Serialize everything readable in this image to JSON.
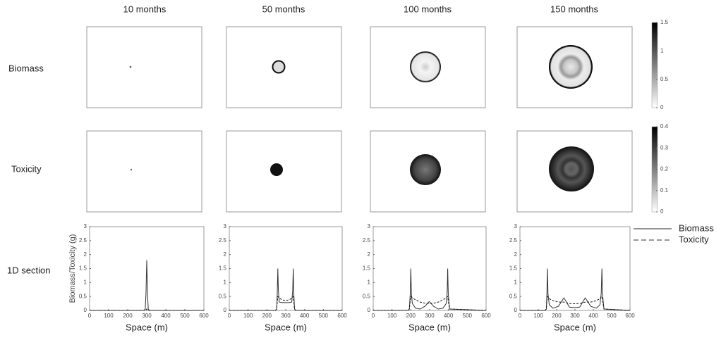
{
  "column_titles": [
    "10 months",
    "50 months",
    "100 months",
    "150 months"
  ],
  "row_labels": [
    "Biomass",
    "Toxicity",
    "1D section"
  ],
  "colorbars": [
    {
      "lim": [
        0,
        1.5
      ],
      "ticks": [
        0,
        0.5,
        1,
        1.5
      ]
    },
    {
      "lim": [
        0,
        0.4
      ],
      "ticks": [
        0,
        0.1,
        0.2,
        0.3,
        0.4
      ]
    }
  ],
  "chart_data": [
    {
      "type": "line",
      "xlabel": "Space (m)",
      "ylabel": "Biomass/Toxicity (g)",
      "xlim": [
        0,
        600
      ],
      "xticks": [
        0,
        100,
        200,
        300,
        400,
        500,
        600
      ],
      "ylim": [
        0,
        3
      ],
      "yticks": [
        0,
        0.5,
        1,
        1.5,
        2,
        2.5,
        3
      ],
      "x": [
        0,
        285,
        292,
        296,
        300,
        304,
        308,
        315,
        600
      ],
      "series": [
        {
          "color": "#333333",
          "dash": "solid",
          "values": [
            0,
            0,
            0.05,
            0.6,
            1.8,
            0.6,
            0.05,
            0,
            0
          ]
        },
        {
          "color": "#111111",
          "dash": "dashed",
          "values": [
            0,
            0,
            0,
            0.02,
            0.05,
            0.02,
            0,
            0,
            0
          ]
        }
      ]
    },
    {
      "type": "line",
      "xlabel": "Space (m)",
      "xlim": [
        0,
        600
      ],
      "xticks": [
        0,
        100,
        200,
        300,
        400,
        500,
        600
      ],
      "ylim": [
        0,
        3
      ],
      "yticks": [
        0,
        0.5,
        1,
        1.5,
        2,
        2.5,
        3
      ],
      "x": [
        0,
        245,
        252,
        255,
        258,
        261,
        266,
        280,
        299,
        318,
        332,
        337,
        340,
        343,
        347,
        353,
        600
      ],
      "series": [
        {
          "color": "#333333",
          "dash": "solid",
          "values": [
            0,
            0,
            0.05,
            0.6,
            1.5,
            0.7,
            0.3,
            0.28,
            0.28,
            0.28,
            0.3,
            0.7,
            1.5,
            0.6,
            0.05,
            0,
            0
          ]
        },
        {
          "color": "#111111",
          "dash": "dashed",
          "values": [
            0,
            0,
            0.05,
            0.3,
            0.5,
            0.48,
            0.44,
            0.38,
            0.35,
            0.38,
            0.44,
            0.48,
            0.5,
            0.3,
            0.05,
            0,
            0
          ]
        }
      ]
    },
    {
      "type": "line",
      "xlabel": "Space (m)",
      "xlim": [
        0,
        600
      ],
      "xticks": [
        0,
        100,
        200,
        300,
        400,
        500,
        600
      ],
      "ylim": [
        0,
        3
      ],
      "yticks": [
        0,
        0.5,
        1,
        1.5,
        2,
        2.5,
        3
      ],
      "x": [
        0,
        186,
        192,
        197,
        200,
        203,
        208,
        225,
        250,
        275,
        298,
        321,
        346,
        371,
        388,
        393,
        396,
        399,
        406,
        600
      ],
      "series": [
        {
          "color": "#333333",
          "dash": "solid",
          "values": [
            0,
            0,
            0.05,
            0.6,
            1.5,
            0.6,
            0.25,
            0.08,
            0.05,
            0.15,
            0.32,
            0.15,
            0.05,
            0.08,
            0.25,
            0.6,
            1.5,
            0.6,
            0.05,
            0
          ]
        },
        {
          "color": "#111111",
          "dash": "dashed",
          "values": [
            0,
            0,
            0.05,
            0.35,
            0.5,
            0.48,
            0.45,
            0.38,
            0.3,
            0.26,
            0.25,
            0.26,
            0.3,
            0.38,
            0.45,
            0.48,
            0.5,
            0.35,
            0.05,
            0
          ]
        }
      ]
    },
    {
      "type": "line",
      "xlabel": "Space (m)",
      "xlim": [
        0,
        600
      ],
      "xticks": [
        0,
        100,
        200,
        300,
        400,
        500,
        600
      ],
      "ylim": [
        0,
        3
      ],
      "yticks": [
        0,
        0.5,
        1,
        1.5,
        2,
        2.5,
        3
      ],
      "x": [
        0,
        136,
        144,
        147,
        150,
        153,
        160,
        180,
        210,
        240,
        270,
        298,
        326,
        356,
        386,
        416,
        436,
        443,
        447,
        450,
        458,
        600
      ],
      "series": [
        {
          "name": "Biomass",
          "color": "#333333",
          "dash": "solid",
          "values": [
            0,
            0,
            0.05,
            0.6,
            1.5,
            0.6,
            0.2,
            0.08,
            0.15,
            0.45,
            0.12,
            0.1,
            0.12,
            0.45,
            0.15,
            0.08,
            0.2,
            0.6,
            1.5,
            0.6,
            0.05,
            0
          ]
        },
        {
          "name": "Toxicity",
          "color": "#111111",
          "dash": "dashed",
          "values": [
            0,
            0,
            0.05,
            0.35,
            0.5,
            0.48,
            0.42,
            0.35,
            0.3,
            0.3,
            0.25,
            0.24,
            0.25,
            0.3,
            0.3,
            0.35,
            0.42,
            0.48,
            0.5,
            0.35,
            0.05,
            0
          ]
        }
      ]
    }
  ]
}
